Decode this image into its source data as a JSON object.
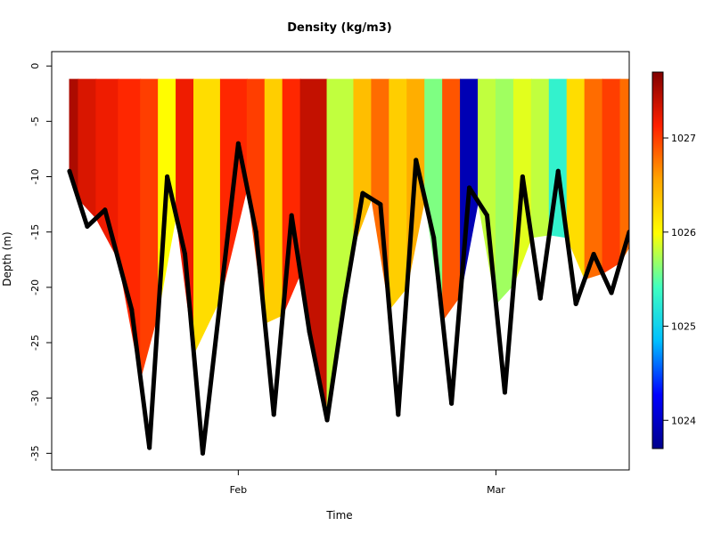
{
  "chart_data": {
    "type": "scatter",
    "title": "Density (kg/m3)",
    "xlabel": "Time",
    "ylabel": "Depth (m)",
    "x_ticks": [
      "Feb",
      "Mar"
    ],
    "y_ticks": [
      0,
      -5,
      -10,
      -15,
      -20,
      -25,
      -30,
      -35
    ],
    "ylim": [
      -36.5,
      1.3
    ],
    "x_range": [
      "2012-01-11",
      "2012-03-16"
    ],
    "colorbar": {
      "ticks": [
        1024,
        1025,
        1026,
        1027
      ],
      "range": [
        1023.7,
        1027.7
      ],
      "colormap": [
        "#00008B",
        "#0000FF",
        "#00BFFF",
        "#40FFC0",
        "#FFFF00",
        "#FFA500",
        "#FF2000",
        "#800000"
      ]
    },
    "bottom_depth_series_color": "#000000",
    "bottom_depth_profile": {
      "x": [
        "2012-01-13",
        "2012-01-15",
        "2012-01-17",
        "2012-01-20",
        "2012-01-22",
        "2012-01-24",
        "2012-01-26",
        "2012-01-28",
        "2012-02-01",
        "2012-02-03",
        "2012-02-05",
        "2012-02-07",
        "2012-02-09",
        "2012-02-11",
        "2012-02-13",
        "2012-02-15",
        "2012-02-17",
        "2012-02-19",
        "2012-02-21",
        "2012-02-23",
        "2012-02-25",
        "2012-02-27",
        "2012-02-29",
        "2012-03-02",
        "2012-03-04",
        "2012-03-06",
        "2012-03-08",
        "2012-03-10",
        "2012-03-12",
        "2012-03-14",
        "2012-03-16"
      ],
      "y": [
        -9.5,
        -14.5,
        -13,
        -22,
        -34.5,
        -10,
        -17,
        -35,
        -7,
        -15,
        -31.5,
        -13.5,
        -24,
        -32,
        -21,
        -11.5,
        -12.5,
        -31.5,
        -8.5,
        -15.5,
        -30.5,
        -11,
        -13.5,
        -29.5,
        -10,
        -21,
        -9.5,
        -21.5,
        -17,
        -20.5,
        -15
      ]
    },
    "density_columns": {
      "x": [
        "2012-01-13",
        "2012-01-15",
        "2012-01-17",
        "2012-01-20",
        "2012-01-22",
        "2012-01-24",
        "2012-01-26",
        "2012-01-28",
        "2012-02-01",
        "2012-02-03",
        "2012-02-05",
        "2012-02-07",
        "2012-02-09",
        "2012-02-13",
        "2012-02-15",
        "2012-02-17",
        "2012-02-19",
        "2012-02-21",
        "2012-02-23",
        "2012-02-25",
        "2012-02-27",
        "2012-02-29",
        "2012-03-02",
        "2012-03-04",
        "2012-03-06",
        "2012-03-08",
        "2012-03-10",
        "2012-03-12",
        "2012-03-14",
        "2012-03-16"
      ],
      "density": [
        1027.5,
        1027.3,
        1027.2,
        1027.1,
        1027.0,
        1026.0,
        1027.2,
        1026.2,
        1027.1,
        1027.0,
        1026.3,
        1027.1,
        1027.4,
        1025.8,
        1026.4,
        1026.8,
        1026.3,
        1026.5,
        1025.6,
        1026.9,
        1023.9,
        1025.8,
        1025.7,
        1025.9,
        1025.8,
        1025.3,
        1026.2,
        1026.8,
        1027.0,
        1026.8
      ]
    }
  }
}
